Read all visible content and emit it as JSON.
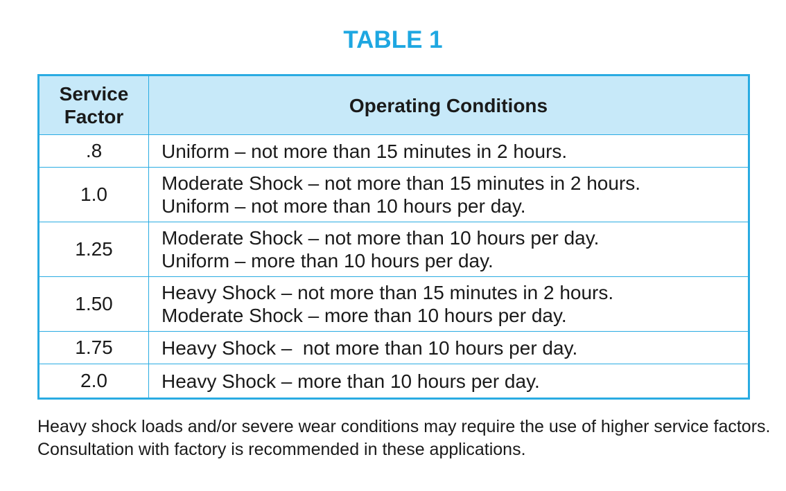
{
  "title": "TABLE 1",
  "table": {
    "headers": [
      "Service Factor",
      "Operating Conditions"
    ],
    "rows": [
      {
        "factor": ".8",
        "conditions": [
          "Uniform – not more than 15 minutes in 2 hours."
        ]
      },
      {
        "factor": "1.0",
        "conditions": [
          "Moderate Shock – not more than 15 minutes in 2 hours.",
          "Uniform – not more than 10 hours per day."
        ]
      },
      {
        "factor": "1.25",
        "conditions": [
          "Moderate Shock – not more than 10 hours per day.",
          "Uniform – more than 10 hours per day."
        ]
      },
      {
        "factor": "1.50",
        "conditions": [
          "Heavy Shock – not more than 15 minutes in 2 hours.",
          "Moderate Shock – more than 10 hours per day."
        ]
      },
      {
        "factor": "1.75",
        "conditions": [
          "Heavy Shock –  not more than 10 hours per day."
        ]
      },
      {
        "factor": "2.0",
        "conditions": [
          "Heavy Shock – more than 10 hours per day."
        ]
      }
    ]
  },
  "note": "Heavy shock loads and/or severe wear conditions may require the use of higher service factors. Consultation with factory is recommended in these applications.",
  "colors": {
    "accent": "#29abe2",
    "header_bg": "#c7e9f9",
    "title": "#1ea7e1"
  }
}
